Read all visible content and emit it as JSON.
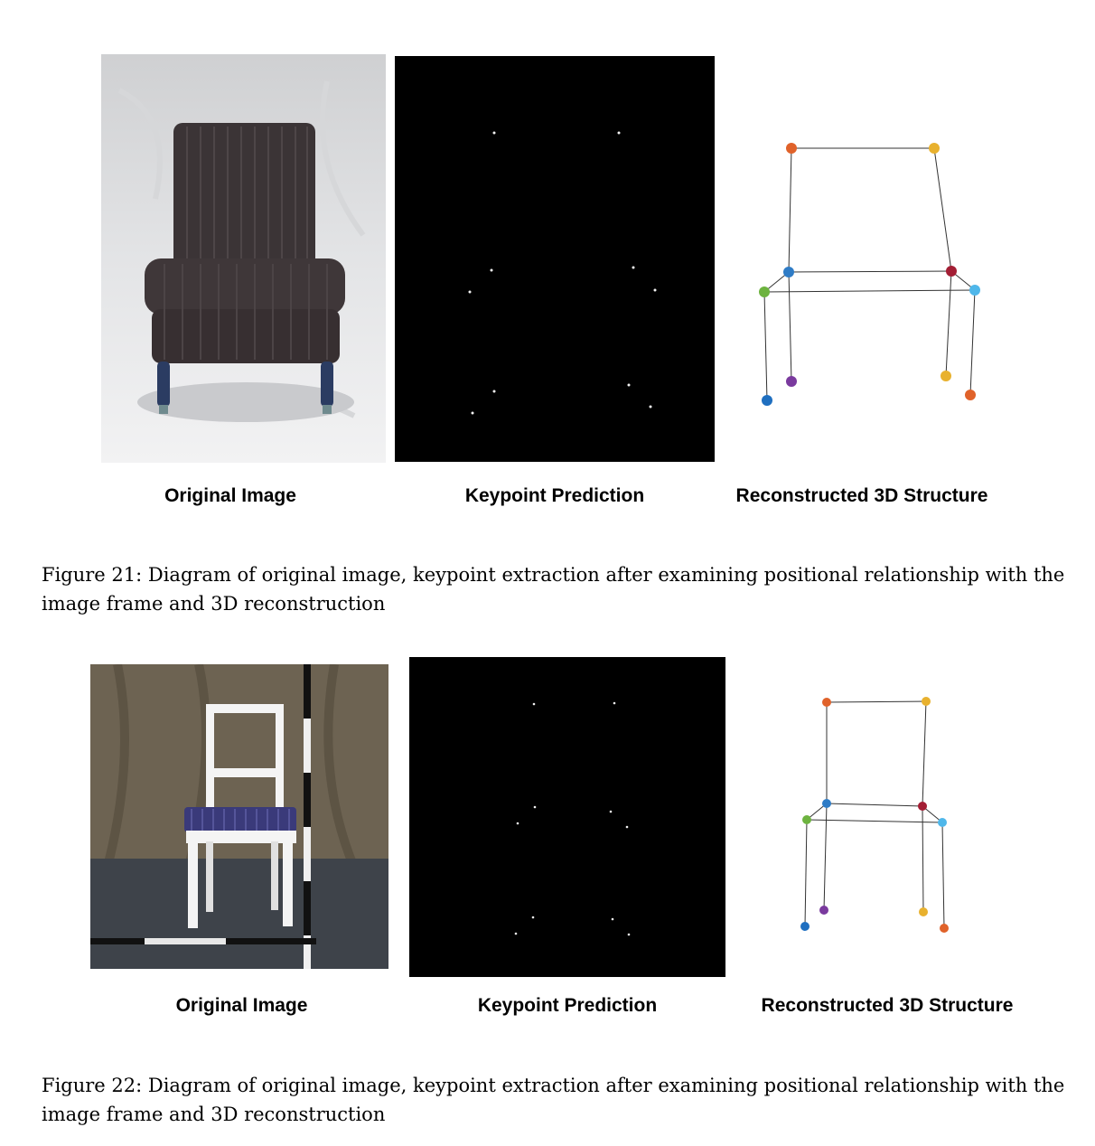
{
  "figures": [
    {
      "labels": {
        "original": "Original Image",
        "keypoints": "Keypoint Prediction",
        "structure": "Reconstructed 3D Structure"
      },
      "caption": "Figure 21: Diagram of original image, keypoint extraction after examining positional relationship with the image frame and 3D reconstruction"
    },
    {
      "labels": {
        "original": "Original Image",
        "keypoints": "Keypoint Prediction",
        "structure": "Reconstructed 3D Structure"
      },
      "caption": "Figure 22: Diagram of original image, keypoint extraction after examining positional relationship with the image frame and 3D reconstruction"
    }
  ],
  "keypoint_colors": {
    "back_top_left": "#e0622a",
    "back_top_right": "#e8b12e",
    "seat_back_left": "#2f7cc6",
    "seat_back_right": "#a31e34",
    "seat_front_left": "#6db33f",
    "seat_front_right": "#4fb7ea",
    "leg_front_left": "#1f6fc0",
    "leg_back_left": "#7a3a9e",
    "leg_back_right": "#e8b12e",
    "leg_front_right": "#e0622a"
  }
}
